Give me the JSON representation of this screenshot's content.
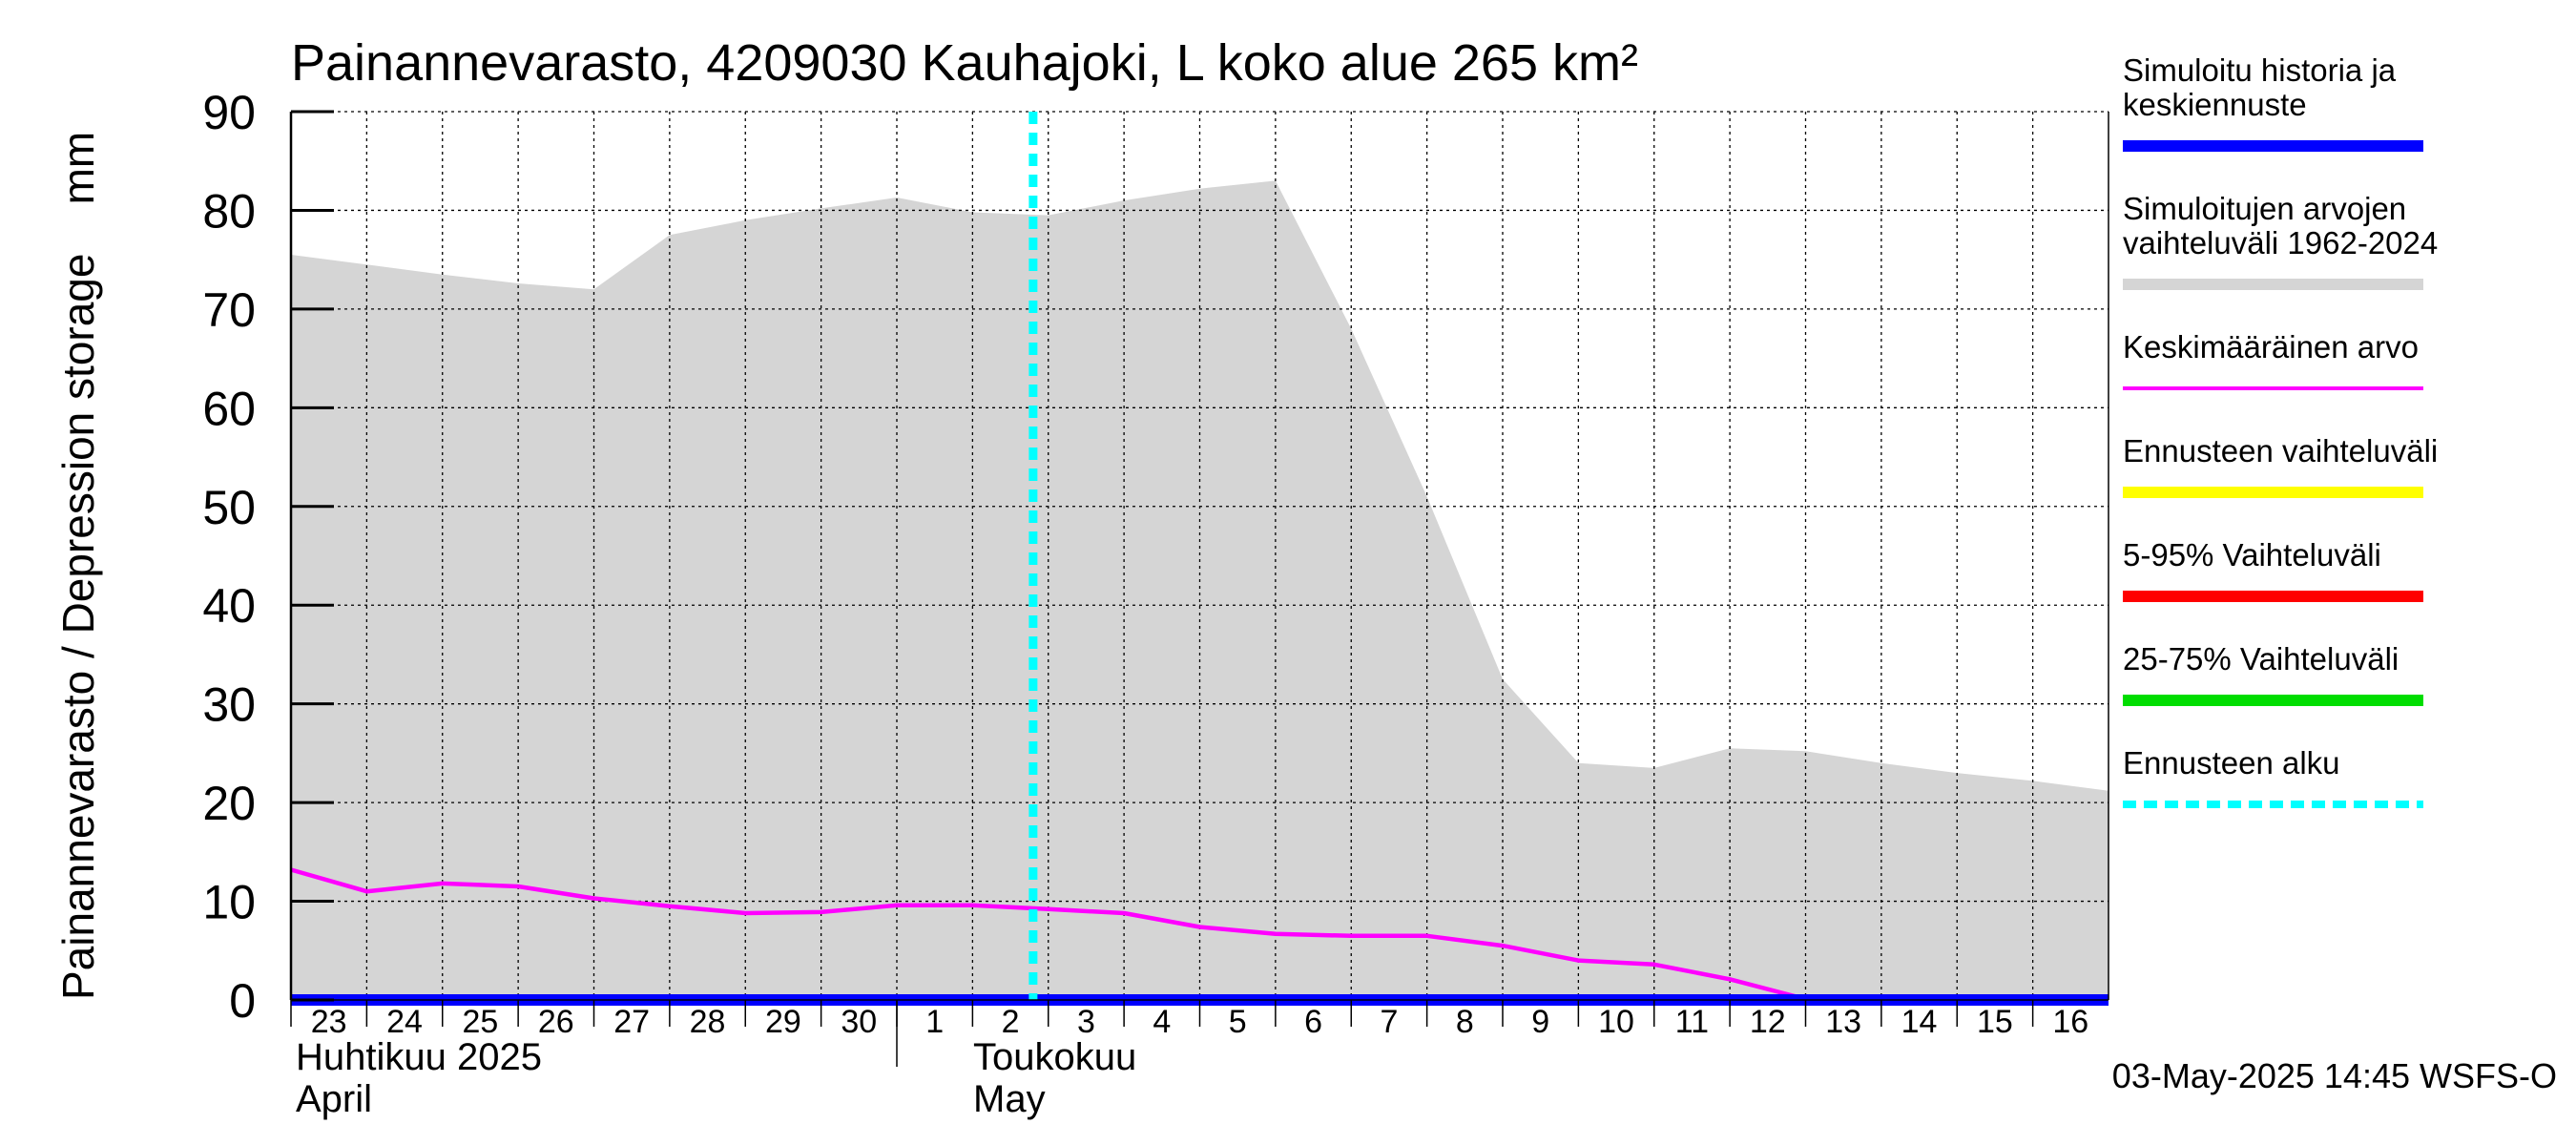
{
  "chart_data": {
    "type": "area",
    "title": "Painannevarasto, 4209030 Kauhajoki, L koko alue 265 km²",
    "ylabel": "Painannevarasto / Depression storage    mm",
    "ylim": [
      0,
      90
    ],
    "yticks": [
      0,
      10,
      20,
      30,
      40,
      50,
      60,
      70,
      80,
      90
    ],
    "x_dates": [
      "2025-04-23",
      "2025-04-24",
      "2025-04-25",
      "2025-04-26",
      "2025-04-27",
      "2025-04-28",
      "2025-04-29",
      "2025-04-30",
      "2025-05-01",
      "2025-05-02",
      "2025-05-03",
      "2025-05-04",
      "2025-05-05",
      "2025-05-06",
      "2025-05-07",
      "2025-05-08",
      "2025-05-09",
      "2025-05-10",
      "2025-05-11",
      "2025-05-12",
      "2025-05-13",
      "2025-05-14",
      "2025-05-15",
      "2025-05-16",
      "2025-05-17"
    ],
    "day_labels": [
      "23",
      "24",
      "25",
      "26",
      "27",
      "28",
      "29",
      "30",
      "1",
      "2",
      "3",
      "4",
      "5",
      "6",
      "7",
      "8",
      "9",
      "10",
      "11",
      "12",
      "13",
      "14",
      "15",
      "16"
    ],
    "month_labels": [
      {
        "fi": "Huhtikuu  2025",
        "en": "April"
      },
      {
        "fi": "Toukokuu",
        "en": "May"
      }
    ],
    "forecast_start": "2025-05-03",
    "grid": true,
    "legend_position": "right",
    "series": [
      {
        "name": "Simuloitujen arvojen vaihteluväli 1962-2024",
        "kind": "band",
        "color": "#d5d5d5",
        "upper": [
          75.5,
          74.5,
          73.5,
          72.6,
          72.0,
          77.5,
          79.0,
          80.2,
          81.3,
          79.8,
          79.5,
          81.0,
          82.2,
          83.0,
          68.0,
          51.0,
          32.5,
          24.0,
          23.5,
          25.5,
          25.2,
          24.0,
          23.0,
          22.2,
          21.2
        ],
        "lower": [
          0,
          0,
          0,
          0,
          0,
          0,
          0,
          0,
          0,
          0,
          0,
          0,
          0,
          0,
          0,
          0,
          0,
          0,
          0,
          0,
          0,
          0,
          0,
          0,
          0
        ]
      },
      {
        "name": "Keskimääräinen arvo",
        "kind": "line",
        "color": "#ff00ff",
        "values": [
          13.2,
          11.0,
          11.8,
          11.5,
          10.3,
          9.5,
          8.8,
          8.9,
          9.6,
          9.6,
          9.2,
          8.8,
          7.4,
          6.7,
          6.5,
          6.5,
          5.5,
          4.0,
          3.6,
          2.1,
          0.1,
          -0.2,
          -0.2,
          -0.2,
          -0.2
        ]
      },
      {
        "name": "Simuloitu historia ja keskiennuste",
        "kind": "line",
        "color": "#0000ff",
        "values": [
          0,
          0,
          0,
          0,
          0,
          0,
          0,
          0,
          0,
          0,
          0,
          0,
          0,
          0,
          0,
          0,
          0,
          0,
          0,
          0,
          0,
          0,
          0,
          0,
          0
        ]
      }
    ]
  },
  "legend": [
    {
      "label": "Simuloitu historia ja\nkeskiennuste",
      "color": "#0000ff",
      "style": "thick"
    },
    {
      "label": "Simuloitujen arvojen\nvaihteluväli 1962-2024",
      "color": "#d5d5d5",
      "style": "thick"
    },
    {
      "label": "Keskimääräinen arvo",
      "color": "#ff00ff",
      "style": "thin"
    },
    {
      "label": "Ennusteen vaihteluväli",
      "color": "#ffff00",
      "style": "thick"
    },
    {
      "label": "5-95% Vaihteluväli",
      "color": "#ff0000",
      "style": "thick"
    },
    {
      "label": "25-75% Vaihteluväli",
      "color": "#00dd00",
      "style": "thick"
    },
    {
      "label": "Ennusteen alku",
      "color": "#00ffff",
      "style": "dashed"
    }
  ],
  "footer": "03-May-2025 14:45 WSFS-O"
}
